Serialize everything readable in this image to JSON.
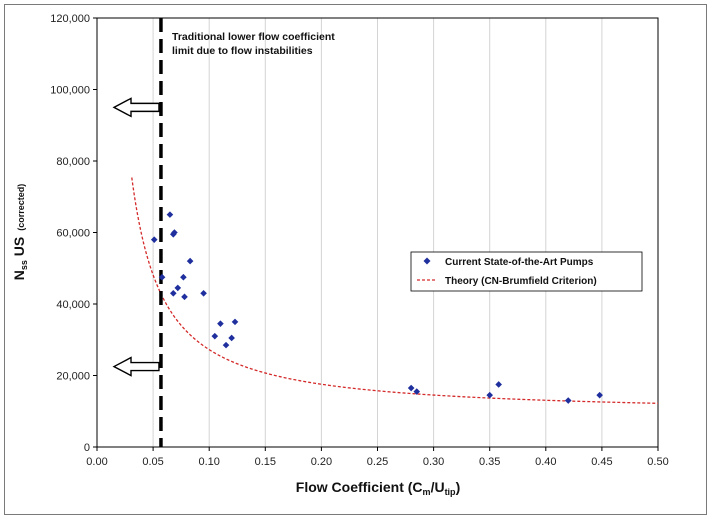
{
  "chart_data": {
    "type": "scatter",
    "xlabel": {
      "main": "Flow Coefficient (C",
      "sub1": "m",
      "mid": "/U",
      "sub2": "tip",
      "end": ")"
    },
    "ylabel": {
      "main": "N",
      "sub": "ss",
      "mid": " US",
      "small": "(corrected)"
    },
    "xlim": [
      0,
      0.5
    ],
    "ylim": [
      0,
      120000
    ],
    "x_ticks": [
      "0.00",
      "0.05",
      "0.10",
      "0.15",
      "0.20",
      "0.25",
      "0.30",
      "0.35",
      "0.40",
      "0.45",
      "0.50"
    ],
    "y_ticks": [
      "0",
      "20,000",
      "40,000",
      "60,000",
      "80,000",
      "100,000",
      "120,000"
    ],
    "grid": "vertical",
    "legend_position": "right",
    "series": [
      {
        "name": "Current State-of-the-Art Pumps",
        "style": "points",
        "color": "#1f2f9e",
        "points": [
          [
            0.051,
            58000
          ],
          [
            0.065,
            65000
          ],
          [
            0.068,
            59500
          ],
          [
            0.069,
            60000
          ],
          [
            0.058,
            47500
          ],
          [
            0.068,
            43000
          ],
          [
            0.072,
            44500
          ],
          [
            0.077,
            47500
          ],
          [
            0.078,
            42000
          ],
          [
            0.083,
            52000
          ],
          [
            0.095,
            43000
          ],
          [
            0.105,
            31000
          ],
          [
            0.11,
            34500
          ],
          [
            0.115,
            28500
          ],
          [
            0.12,
            30500
          ],
          [
            0.123,
            35000
          ],
          [
            0.28,
            16500
          ],
          [
            0.285,
            15500
          ],
          [
            0.35,
            14500
          ],
          [
            0.358,
            17500
          ],
          [
            0.42,
            13000
          ],
          [
            0.448,
            14500
          ]
        ]
      },
      {
        "name": "Theory (CN-Brumfield Criterion)",
        "style": "dashed-curve",
        "color": "#d42a2a",
        "formula": "y = 1400 / x^1.11 + 9200",
        "x_range": [
          0.031,
          0.5
        ]
      }
    ],
    "limit_line": {
      "x": 0.057,
      "color": "#000000"
    },
    "arrows": [
      {
        "y": 95000,
        "direction": "left"
      },
      {
        "y": 22500,
        "direction": "left"
      }
    ],
    "annotation": {
      "lines": [
        "Traditional lower flow coefficient",
        "limit due to flow instabilities"
      ]
    }
  }
}
